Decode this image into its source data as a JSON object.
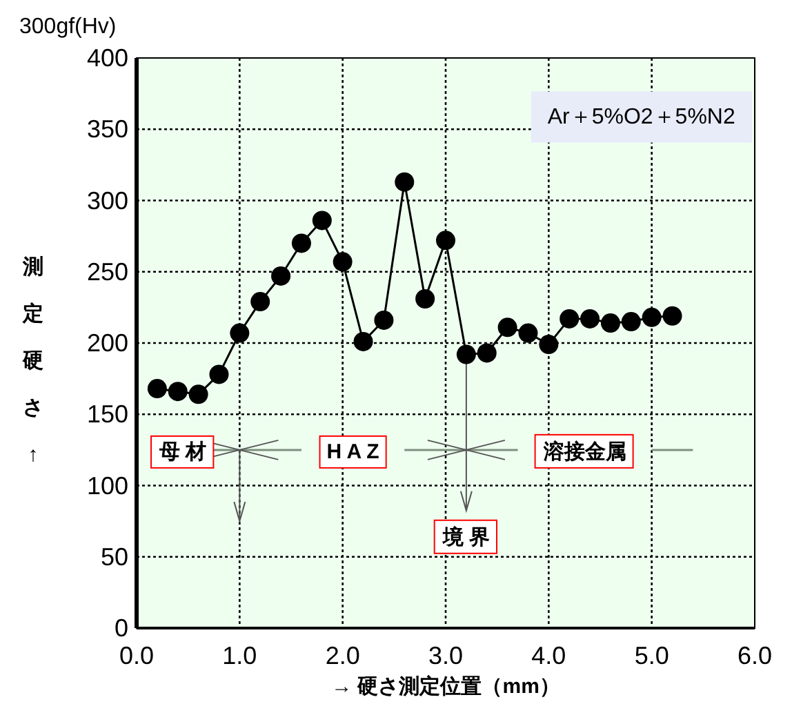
{
  "chart_data": {
    "type": "line",
    "title": "300gf(Hv)",
    "ylabel": "測定硬さ↑",
    "xlabel": "→ 硬さ測定位置（mm）",
    "x": [
      0.2,
      0.4,
      0.6,
      0.8,
      1.0,
      1.2,
      1.4,
      1.6,
      1.8,
      2.0,
      2.2,
      2.4,
      2.6,
      2.8,
      3.0,
      3.2,
      3.4,
      3.6,
      3.8,
      4.0,
      4.2,
      4.4,
      4.6,
      4.8,
      5.0,
      5.2
    ],
    "series": [
      {
        "color": "#000000",
        "values": [
          168,
          166,
          164,
          178,
          207,
          229,
          247,
          270,
          286,
          257,
          201,
          216,
          313,
          231,
          272,
          192,
          193,
          211,
          207,
          199,
          217,
          217,
          214,
          215,
          218,
          219
        ]
      }
    ],
    "xlim": [
      0,
      6
    ],
    "xticks": [
      {
        "value": 0,
        "label": "0.0"
      },
      {
        "value": 1,
        "label": "1.0"
      },
      {
        "value": 2,
        "label": "2.0"
      },
      {
        "value": 3,
        "label": "3.0"
      },
      {
        "value": 4,
        "label": "4.0"
      },
      {
        "value": 5,
        "label": "5.0"
      },
      {
        "value": 6,
        "label": "6.0"
      }
    ],
    "ylim": [
      0,
      400
    ],
    "yticks": [
      0,
      50,
      100,
      150,
      200,
      250,
      300,
      350,
      400
    ],
    "grid": true,
    "marker": "circle",
    "line_style": "solid",
    "annotations": [
      "Ar＋5%O2＋5%N2",
      "母 材",
      "H A Z",
      "溶接金属",
      {
        "text": "境 界",
        "x": 3.2,
        "y": 192
      }
    ]
  }
}
